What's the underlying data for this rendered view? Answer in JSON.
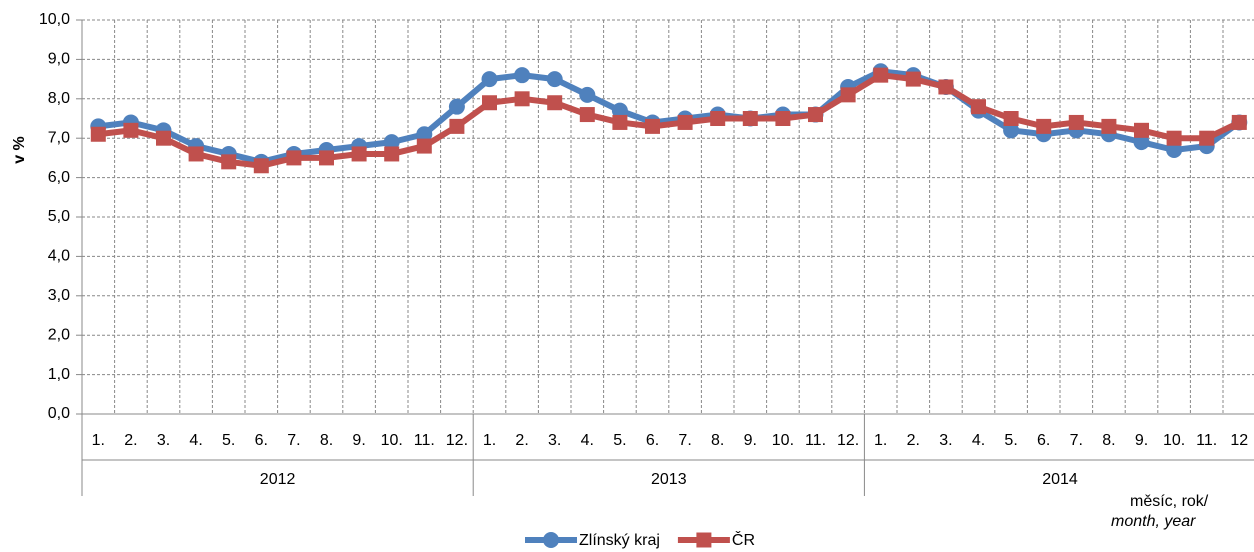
{
  "chart_data": {
    "type": "line",
    "y_label": "v %",
    "x_label": [
      "měsíc, rok/",
      "month, year"
    ],
    "categories": [
      "1.",
      "2.",
      "3.",
      "4.",
      "5.",
      "6.",
      "7.",
      "8.",
      "9.",
      "10.",
      "11.",
      "12.",
      "1.",
      "2.",
      "3.",
      "4.",
      "5.",
      "6.",
      "7.",
      "8.",
      "9.",
      "10.",
      "11.",
      "12.",
      "1.",
      "2.",
      "3.",
      "4.",
      "5.",
      "6.",
      "7.",
      "8.",
      "9.",
      "10.",
      "11.",
      "12"
    ],
    "groups": [
      "2012",
      "2013",
      "2014"
    ],
    "series": [
      {
        "name": "Zlínský kraj",
        "color": "#4f81bd",
        "marker": "circle",
        "values": [
          7.3,
          7.4,
          7.2,
          6.8,
          6.6,
          6.4,
          6.6,
          6.7,
          6.8,
          6.9,
          7.1,
          7.8,
          8.5,
          8.6,
          8.5,
          8.1,
          7.7,
          7.4,
          7.5,
          7.6,
          7.5,
          7.6,
          7.6,
          8.3,
          8.7,
          8.6,
          8.3,
          7.7,
          7.2,
          7.1,
          7.2,
          7.1,
          6.9,
          6.7,
          6.8,
          7.4
        ]
      },
      {
        "name": "ČR",
        "color": "#c0504d",
        "marker": "square",
        "values": [
          7.1,
          7.2,
          7.0,
          6.6,
          6.4,
          6.3,
          6.5,
          6.5,
          6.6,
          6.6,
          6.8,
          7.3,
          7.9,
          8.0,
          7.9,
          7.6,
          7.4,
          7.3,
          7.4,
          7.5,
          7.5,
          7.5,
          7.6,
          8.1,
          8.6,
          8.5,
          8.3,
          7.8,
          7.5,
          7.3,
          7.4,
          7.3,
          7.2,
          7.0,
          7.0,
          7.4
        ]
      }
    ],
    "ylim": [
      0,
      10
    ],
    "yticks": [
      {
        "value": 0,
        "label": "0,0"
      },
      {
        "value": 1,
        "label": "1,0"
      },
      {
        "value": 2,
        "label": "2,0"
      },
      {
        "value": 3,
        "label": "3,0"
      },
      {
        "value": 4,
        "label": "4,0"
      },
      {
        "value": 5,
        "label": "5,0"
      },
      {
        "value": 6,
        "label": "6,0"
      },
      {
        "value": 7,
        "label": "7,0"
      },
      {
        "value": 8,
        "label": "8,0"
      },
      {
        "value": 9,
        "label": "9,0"
      },
      {
        "value": 10,
        "label": "10,0"
      }
    ],
    "grid": true
  }
}
